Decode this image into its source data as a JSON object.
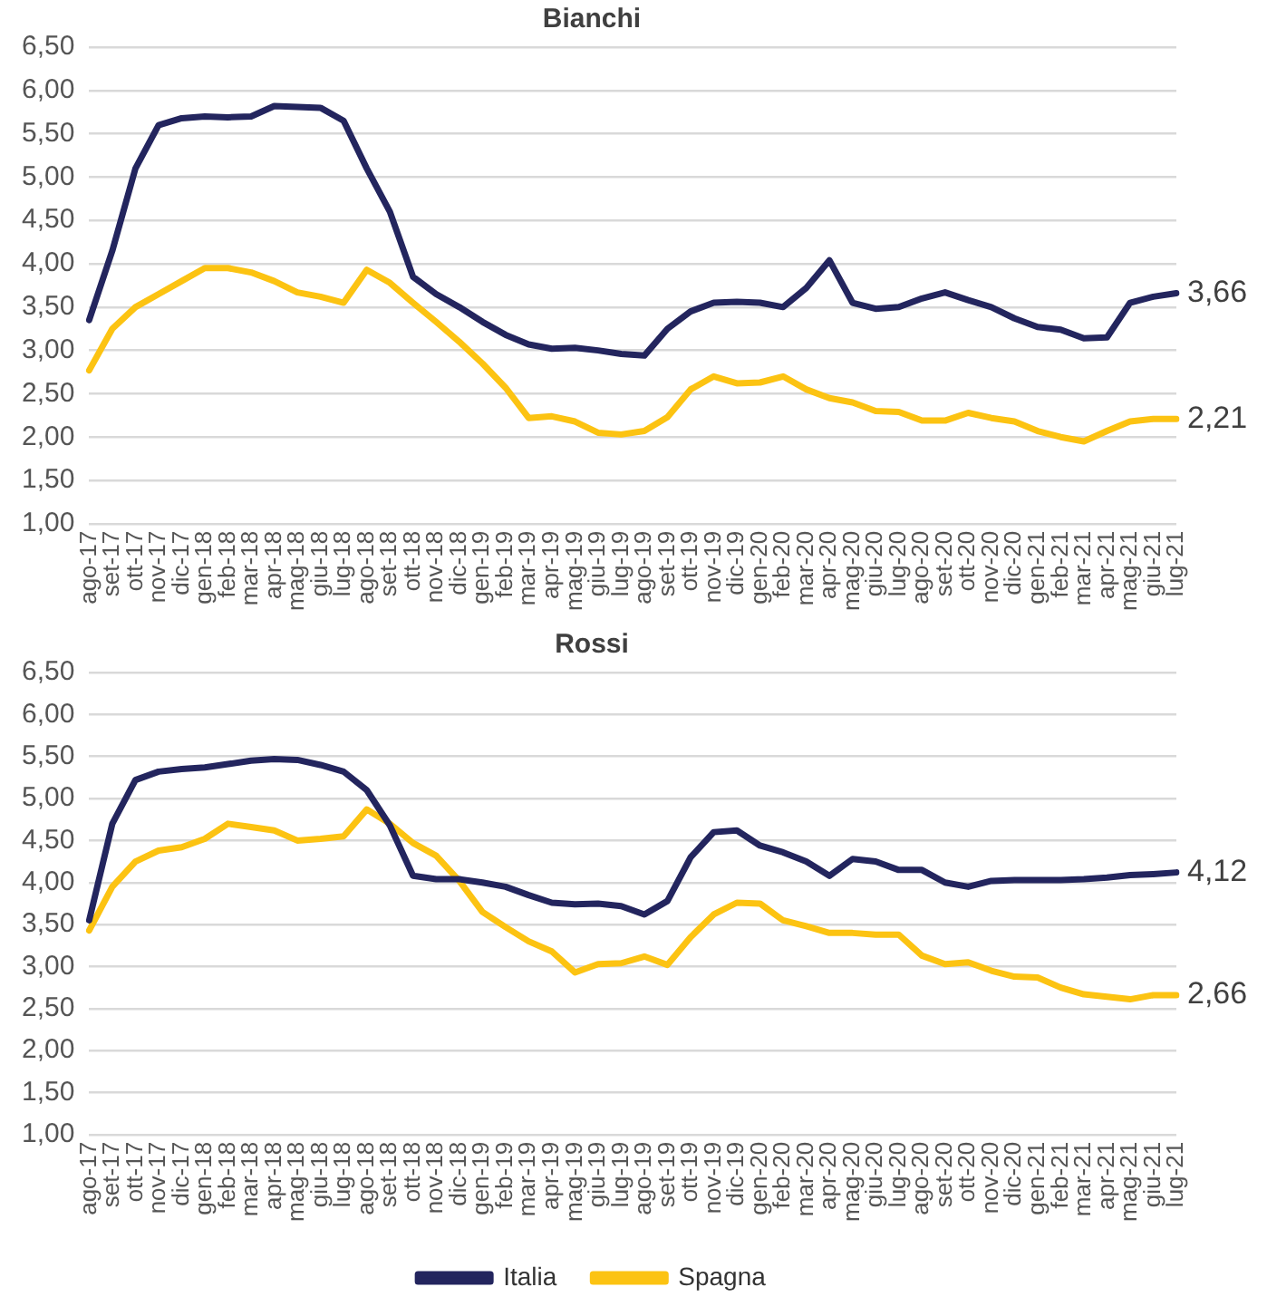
{
  "chart_data": [
    {
      "type": "line",
      "title": "Bianchi",
      "categories": [
        "ago-17",
        "set-17",
        "ott-17",
        "nov-17",
        "dic-17",
        "gen-18",
        "feb-18",
        "mar-18",
        "apr-18",
        "mag-18",
        "giu-18",
        "lug-18",
        "ago-18",
        "set-18",
        "ott-18",
        "nov-18",
        "dic-18",
        "gen-19",
        "feb-19",
        "mar-19",
        "apr-19",
        "mag-19",
        "giu-19",
        "lug-19",
        "ago-19",
        "set-19",
        "ott-19",
        "nov-19",
        "dic-19",
        "gen-20",
        "feb-20",
        "mar-20",
        "apr-20",
        "mag-20",
        "giu-20",
        "lug-20",
        "ago-20",
        "set-20",
        "ott-20",
        "nov-20",
        "dic-20",
        "gen-21",
        "feb-21",
        "mar-21",
        "apr-21",
        "mag-21",
        "giu-21",
        "lug-21"
      ],
      "series": [
        {
          "color": "#23255e",
          "values": [
            3.35,
            4.15,
            5.1,
            5.6,
            5.68,
            5.7,
            5.69,
            5.7,
            5.82,
            5.81,
            5.8,
            5.65,
            5.1,
            4.6,
            3.85,
            3.65,
            3.5,
            3.33,
            3.18,
            3.07,
            3.02,
            3.03,
            3.0,
            2.96,
            2.94,
            3.25,
            3.45,
            3.55,
            3.56,
            3.55,
            3.5,
            3.72,
            4.04,
            3.55,
            3.48,
            3.5,
            3.6,
            3.67,
            3.58,
            3.5,
            3.37,
            3.27,
            3.24,
            3.14,
            3.15,
            3.55,
            3.62,
            3.66
          ]
        },
        {
          "color": "#fcc312",
          "values": [
            2.77,
            3.25,
            3.5,
            3.65,
            3.8,
            3.95,
            3.95,
            3.9,
            3.8,
            3.67,
            3.62,
            3.55,
            3.93,
            3.78,
            3.55,
            3.33,
            3.1,
            2.85,
            2.57,
            2.22,
            2.24,
            2.18,
            2.05,
            2.03,
            2.07,
            2.23,
            2.55,
            2.7,
            2.62,
            2.63,
            2.7,
            2.55,
            2.45,
            2.4,
            2.3,
            2.29,
            2.19,
            2.19,
            2.28,
            2.22,
            2.18,
            2.07,
            2.0,
            1.95,
            2.07,
            2.18,
            2.21,
            2.21
          ]
        }
      ],
      "ylim": [
        1,
        6.5
      ],
      "yticks": [
        {
          "value": 1,
          "label": "1,00"
        },
        {
          "value": 1.5,
          "label": "1,50"
        },
        {
          "value": 2,
          "label": "2,00"
        },
        {
          "value": 2.5,
          "label": "2,50"
        },
        {
          "value": 3,
          "label": "3,00"
        },
        {
          "value": 3.5,
          "label": "3,50"
        },
        {
          "value": 4,
          "label": "4,00"
        },
        {
          "value": 4.5,
          "label": "4,50"
        },
        {
          "value": 5,
          "label": "5,00"
        },
        {
          "value": 5.5,
          "label": "5,50"
        },
        {
          "value": 6,
          "label": "6,00"
        },
        {
          "value": 6.5,
          "label": "6,50"
        }
      ],
      "grid": "y",
      "marker": "none",
      "legend": false,
      "annotations": [
        {
          "text": "3,66",
          "x": "lug-21",
          "y": 3.66
        },
        {
          "text": "2,21",
          "x": "lug-21",
          "y": 2.21
        }
      ]
    },
    {
      "type": "line",
      "title": "Rossi",
      "categories": [
        "ago-17",
        "set-17",
        "ott-17",
        "nov-17",
        "dic-17",
        "gen-18",
        "feb-18",
        "mar-18",
        "apr-18",
        "mag-18",
        "giu-18",
        "lug-18",
        "ago-18",
        "set-18",
        "ott-18",
        "nov-18",
        "dic-18",
        "gen-19",
        "feb-19",
        "mar-19",
        "apr-19",
        "mag-19",
        "giu-19",
        "lug-19",
        "ago-19",
        "set-19",
        "ott-19",
        "nov-19",
        "dic-19",
        "gen-20",
        "feb-20",
        "mar-20",
        "apr-20",
        "mag-20",
        "giu-20",
        "lug-20",
        "ago-20",
        "set-20",
        "ott-20",
        "nov-20",
        "dic-20",
        "gen-21",
        "feb-21",
        "mar-21",
        "apr-21",
        "mag-21",
        "giu-21",
        "lug-21"
      ],
      "series": [
        {
          "name": "Italia",
          "color": "#23255e",
          "values": [
            3.55,
            4.7,
            5.22,
            5.32,
            5.35,
            5.37,
            5.41,
            5.45,
            5.47,
            5.46,
            5.4,
            5.32,
            5.1,
            4.68,
            4.08,
            4.04,
            4.04,
            4.0,
            3.95,
            3.85,
            3.76,
            3.74,
            3.75,
            3.72,
            3.62,
            3.78,
            4.3,
            4.6,
            4.62,
            4.44,
            4.36,
            4.25,
            4.08,
            4.28,
            4.25,
            4.15,
            4.15,
            4.0,
            3.95,
            4.02,
            4.03,
            4.03,
            4.03,
            4.04,
            4.06,
            4.09,
            4.1,
            4.12
          ]
        },
        {
          "name": "Spagna",
          "color": "#fcc312",
          "values": [
            3.43,
            3.95,
            4.25,
            4.38,
            4.42,
            4.52,
            4.7,
            4.66,
            4.62,
            4.5,
            4.52,
            4.55,
            4.87,
            4.7,
            4.47,
            4.32,
            4.02,
            3.65,
            3.47,
            3.3,
            3.18,
            2.93,
            3.03,
            3.04,
            3.12,
            3.02,
            3.35,
            3.62,
            3.76,
            3.75,
            3.55,
            3.48,
            3.4,
            3.4,
            3.38,
            3.38,
            3.13,
            3.03,
            3.05,
            2.95,
            2.88,
            2.87,
            2.75,
            2.67,
            2.64,
            2.61,
            2.66,
            2.66
          ]
        }
      ],
      "ylim": [
        1,
        6.5
      ],
      "yticks": [
        {
          "value": 1,
          "label": "1,00"
        },
        {
          "value": 1.5,
          "label": "1,50"
        },
        {
          "value": 2,
          "label": "2,00"
        },
        {
          "value": 2.5,
          "label": "2,50"
        },
        {
          "value": 3,
          "label": "3,00"
        },
        {
          "value": 3.5,
          "label": "3,50"
        },
        {
          "value": 4,
          "label": "4,00"
        },
        {
          "value": 4.5,
          "label": "4,50"
        },
        {
          "value": 5,
          "label": "5,00"
        },
        {
          "value": 5.5,
          "label": "5,50"
        },
        {
          "value": 6,
          "label": "6,00"
        },
        {
          "value": 6.5,
          "label": "6,50"
        }
      ],
      "grid": "y",
      "marker": "none",
      "legend": "bottom",
      "annotations": [
        {
          "text": "4,12",
          "x": "lug-21",
          "y": 4.12
        },
        {
          "text": "2,66",
          "x": "lug-21",
          "y": 2.66
        }
      ]
    }
  ]
}
